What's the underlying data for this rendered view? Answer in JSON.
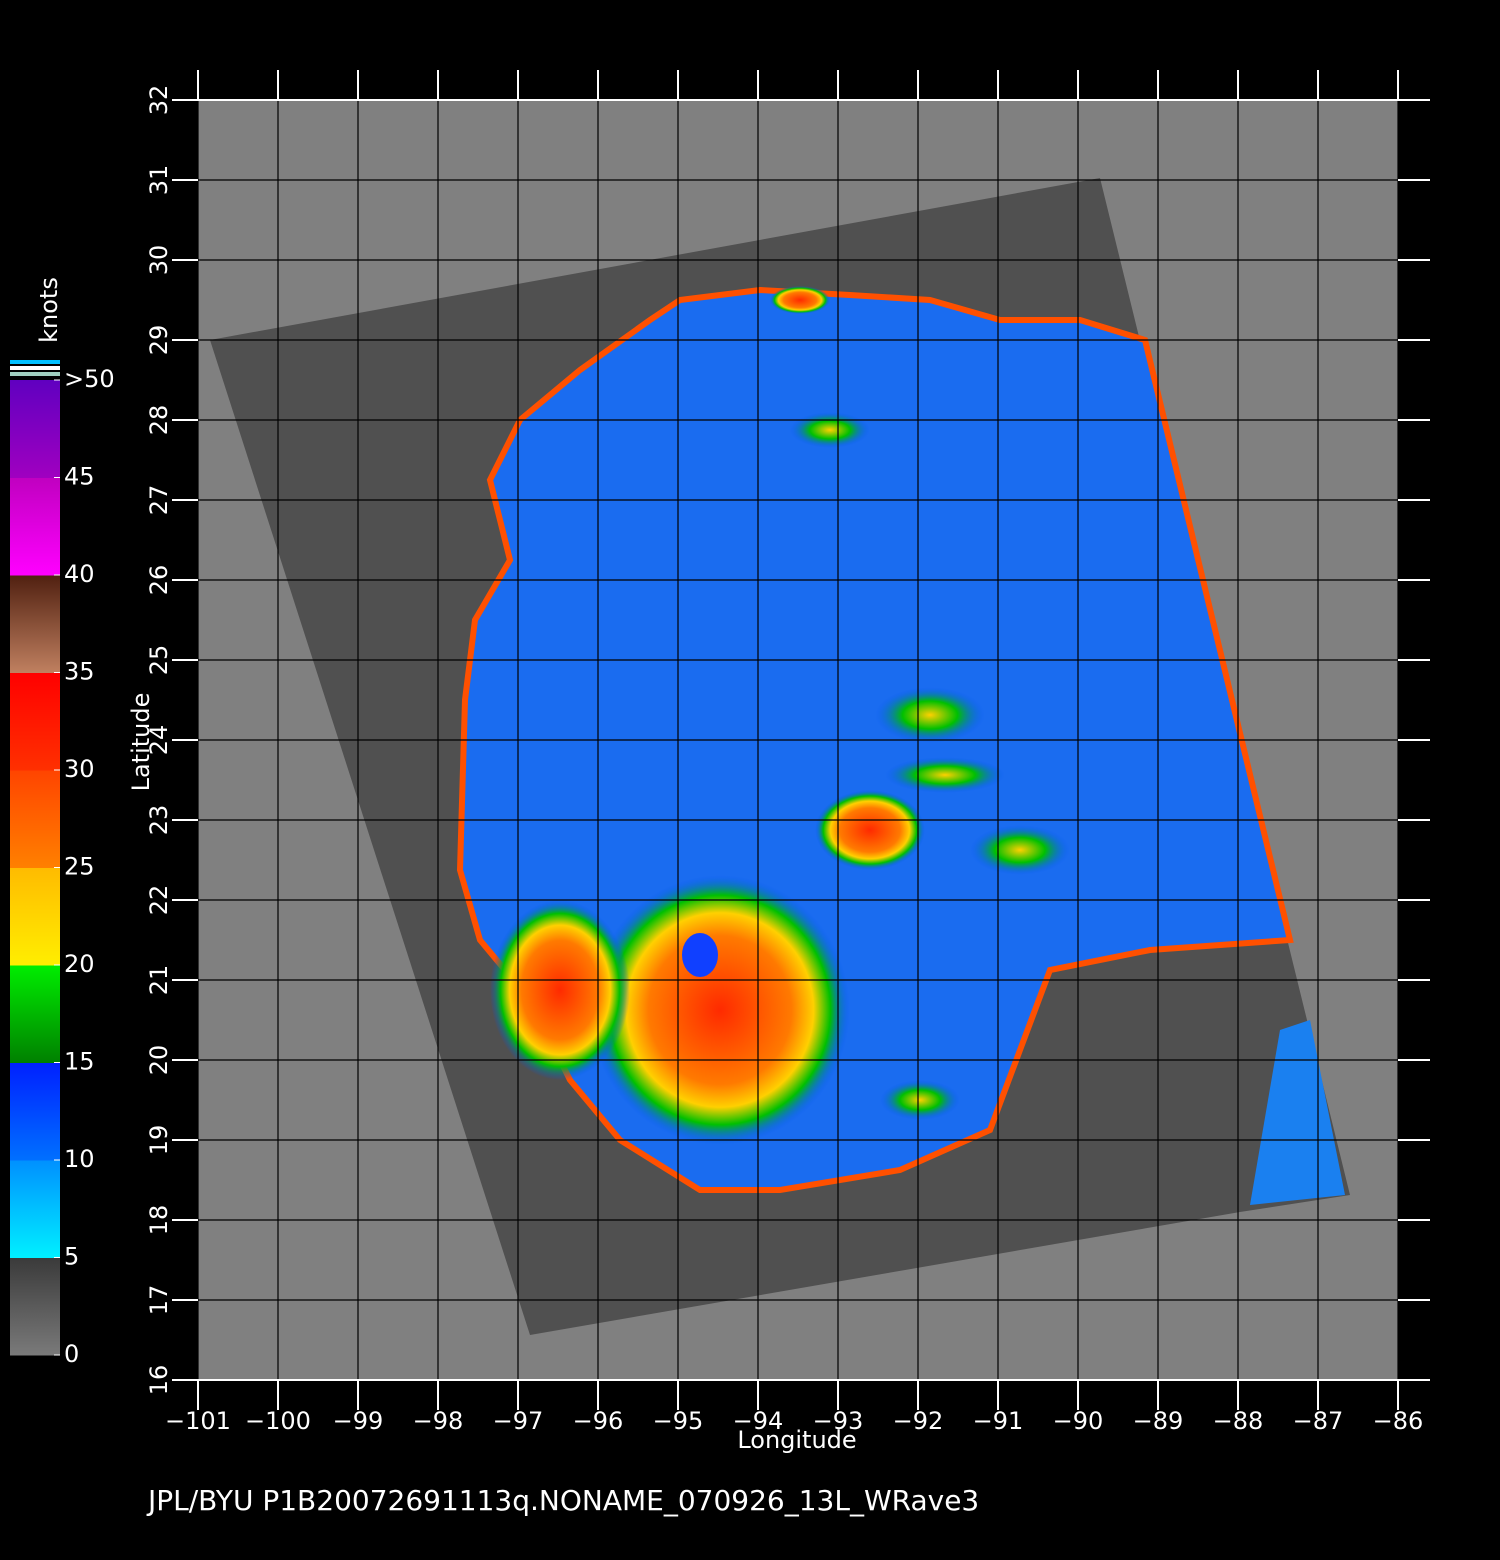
{
  "chart_data": {
    "type": "map",
    "title": "JPL/BYU  P1B20072691113q.NONAME_070926_13L_WRave3",
    "x_label": "Longitude",
    "y_label": "Latitude",
    "xlim": [
      -101,
      -86
    ],
    "ylim": [
      16,
      32
    ],
    "xticks": [
      {
        "value": -101,
        "label": "−101"
      },
      {
        "value": -100,
        "label": "−100"
      },
      {
        "value": -99,
        "label": "−99"
      },
      {
        "value": -98,
        "label": "−98"
      },
      {
        "value": -97,
        "label": "−97"
      },
      {
        "value": -96,
        "label": "−96"
      },
      {
        "value": -95,
        "label": "−95"
      },
      {
        "value": -94,
        "label": "−94"
      },
      {
        "value": -93,
        "label": "−93"
      },
      {
        "value": -92,
        "label": "−92"
      },
      {
        "value": -91,
        "label": "−91"
      },
      {
        "value": -90,
        "label": "−90"
      },
      {
        "value": -89,
        "label": "−89"
      },
      {
        "value": -88,
        "label": "−88"
      },
      {
        "value": -87,
        "label": "−87"
      },
      {
        "value": -86,
        "label": "−86"
      }
    ],
    "yticks": [
      16,
      17,
      18,
      19,
      20,
      21,
      22,
      23,
      24,
      25,
      26,
      27,
      28,
      29,
      30,
      31,
      32
    ],
    "grid": true,
    "colorbar": {
      "label": "knots",
      "lim": [
        0,
        50
      ],
      "ticks": [
        0,
        5,
        10,
        15,
        20,
        25,
        30,
        35,
        40,
        45,
        {
          "value": 50,
          "label": ">50"
        }
      ],
      "colors": [
        [
          "#7a7a7a",
          "#3a3a3a"
        ],
        [
          "#00f0ff",
          "#0090ff"
        ],
        [
          "#0070ff",
          "#0020ff"
        ],
        [
          "#008000",
          "#00ee00"
        ],
        [
          "#ffee00",
          "#ffbb00"
        ],
        [
          "#ff8000",
          "#ff4400"
        ],
        [
          "#ff3000",
          "#ff0000"
        ],
        [
          "#c08060",
          "#502010"
        ],
        [
          "#ff00ff",
          "#c000c0"
        ],
        [
          "#a000c0",
          "#6000c0"
        ]
      ]
    }
  }
}
